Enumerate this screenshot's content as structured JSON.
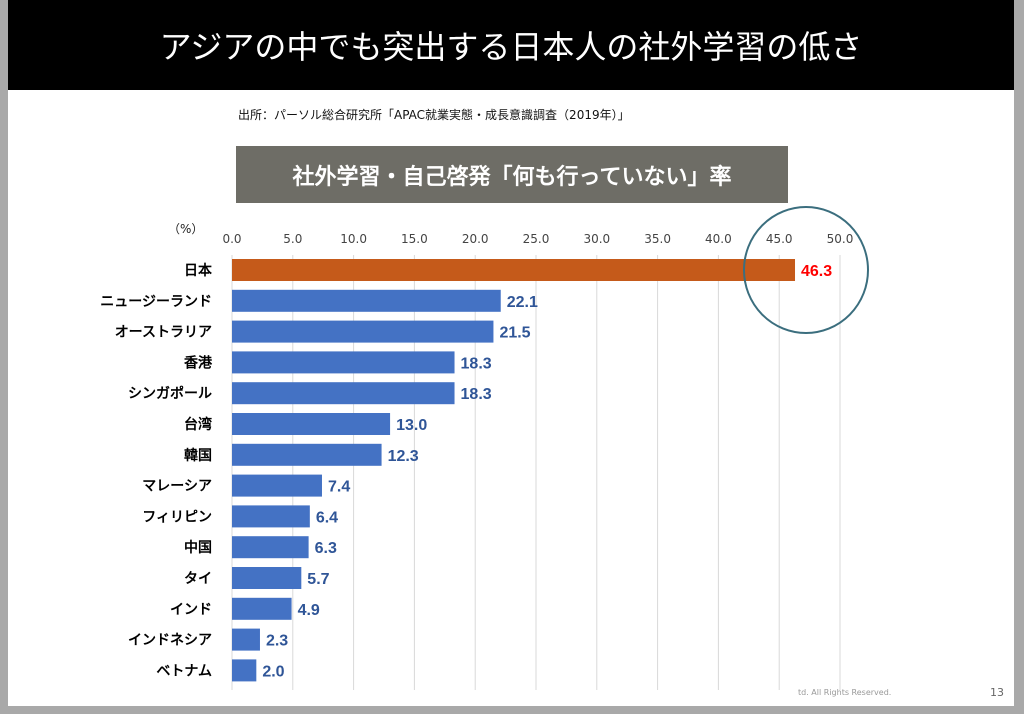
{
  "title": "アジアの中でも突出する日本人の社外学習の低さ",
  "source": "出所：パーソル総合研究所「APAC就業実態・成長意識調査（2019年）」",
  "footer": "td. All Rights Reserved.",
  "page_number": "13",
  "chart_data": {
    "type": "bar",
    "orientation": "horizontal",
    "title": "社外学習・自己啓発「何も行っていない」率",
    "unit_label": "（%）",
    "xlim": [
      0,
      50
    ],
    "ticks": [
      "0.0",
      "5.0",
      "10.0",
      "15.0",
      "20.0",
      "25.0",
      "30.0",
      "35.0",
      "40.0",
      "45.0",
      "50.0"
    ],
    "grid": true,
    "categories": [
      "日本",
      "ニュージーランド",
      "オーストラリア",
      "香港",
      "シンガポール",
      "台湾",
      "韓国",
      "マレーシア",
      "フィリピン",
      "中国",
      "タイ",
      "インド",
      "インドネシア",
      "ベトナム"
    ],
    "values": [
      46.3,
      22.1,
      21.5,
      18.3,
      18.3,
      13.0,
      12.3,
      7.4,
      6.4,
      6.3,
      5.7,
      4.9,
      2.3,
      2.0
    ],
    "labels": [
      "46.3",
      "22.1",
      "21.5",
      "18.3",
      "18.3",
      "13.0",
      "12.3",
      "7.4",
      "6.4",
      "6.3",
      "5.7",
      "4.9",
      "2.3",
      "2.0"
    ],
    "colors": {
      "highlight": "#c55a1a",
      "default": "#4472c4",
      "highlight_label": "#ff0000",
      "label": "#2f5597",
      "circle": "#3b6e7e"
    },
    "highlight_index": 0
  }
}
